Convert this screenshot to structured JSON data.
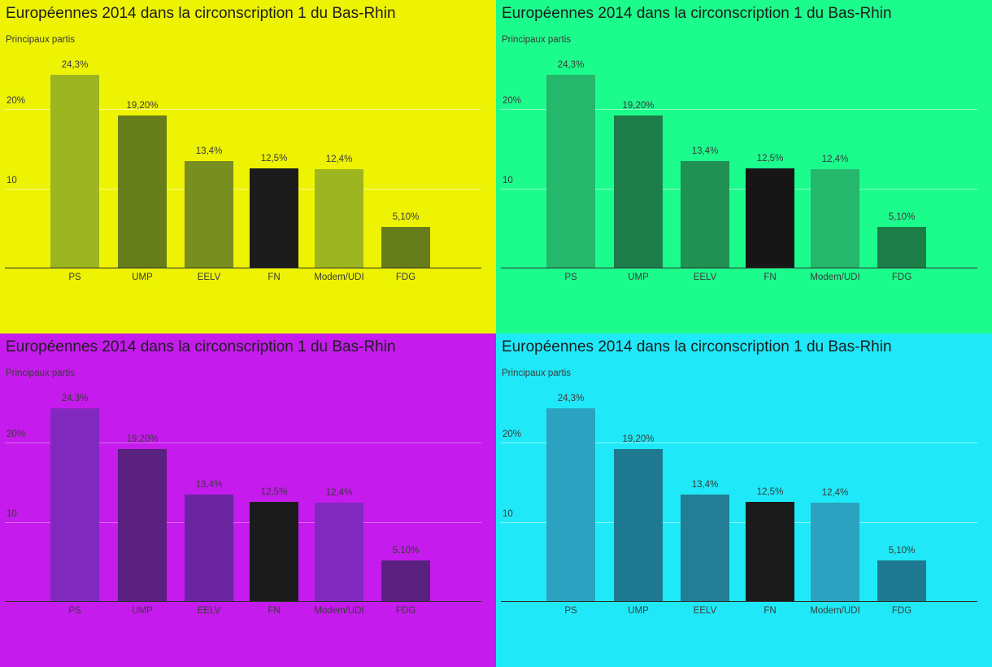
{
  "chart_data": {
    "type": "bar",
    "title": "Européennes 2014 dans la circonscription 1 du Bas-Rhin",
    "subtitle": "Principaux partis",
    "categories": [
      "PS",
      "UMP",
      "EELV",
      "FN",
      "Modem/UDI",
      "FDG"
    ],
    "values": [
      24.3,
      19.2,
      13.4,
      12.5,
      12.4,
      5.1
    ],
    "value_labels": [
      "24,3%",
      "19,20%",
      "13,4%",
      "12,5%",
      "12,4%",
      "5,10%"
    ],
    "bar_shades": [
      "light",
      "dark",
      "mid",
      "black",
      "light",
      "dark"
    ],
    "y_ticks": [
      {
        "value": 10,
        "label": "10"
      },
      {
        "value": 20,
        "label": "20%"
      }
    ],
    "ylim": [
      0,
      27
    ],
    "grid": true,
    "legend": false,
    "xlabel": "",
    "ylabel": ""
  },
  "charts": [
    {
      "id": "yellow",
      "theme": {
        "background": "#EDF303",
        "bar_light": "#9DB520",
        "bar_mid": "#788E1E",
        "bar_dark": "#667D1A",
        "bar_black": "#1B1B1B",
        "grid": "rgba(255,255,255,0.55)",
        "axis": "#2e2e2e",
        "title_text": "#1d1d1d",
        "label_text": "#3a3a3a"
      }
    },
    {
      "id": "green",
      "theme": {
        "background": "#1CFC8C",
        "bar_light": "#25B76B",
        "bar_mid": "#1F9153",
        "bar_dark": "#1C7D49",
        "bar_black": "#161616",
        "grid": "rgba(255,255,255,0.5)",
        "axis": "#2e2e2e",
        "title_text": "#1d1d1d",
        "label_text": "#3a3a3a"
      }
    },
    {
      "id": "magenta",
      "theme": {
        "background": "#C51BEC",
        "bar_light": "#8129BE",
        "bar_mid": "#6B24A0",
        "bar_dark": "#5A2080",
        "bar_black": "#1B1B1B",
        "grid": "rgba(255,255,255,0.35)",
        "axis": "#2e2e2e",
        "title_text": "#1d1d1d",
        "label_text": "#3a3a3a"
      }
    },
    {
      "id": "cyan",
      "theme": {
        "background": "#1FE9F8",
        "bar_light": "#2BA2BF",
        "bar_mid": "#227E95",
        "bar_dark": "#1F7990",
        "bar_black": "#1B1B1B",
        "grid": "rgba(255,255,255,0.5)",
        "axis": "#2e2e2e",
        "title_text": "#1d1d1d",
        "label_text": "#3a3a3a"
      }
    }
  ]
}
